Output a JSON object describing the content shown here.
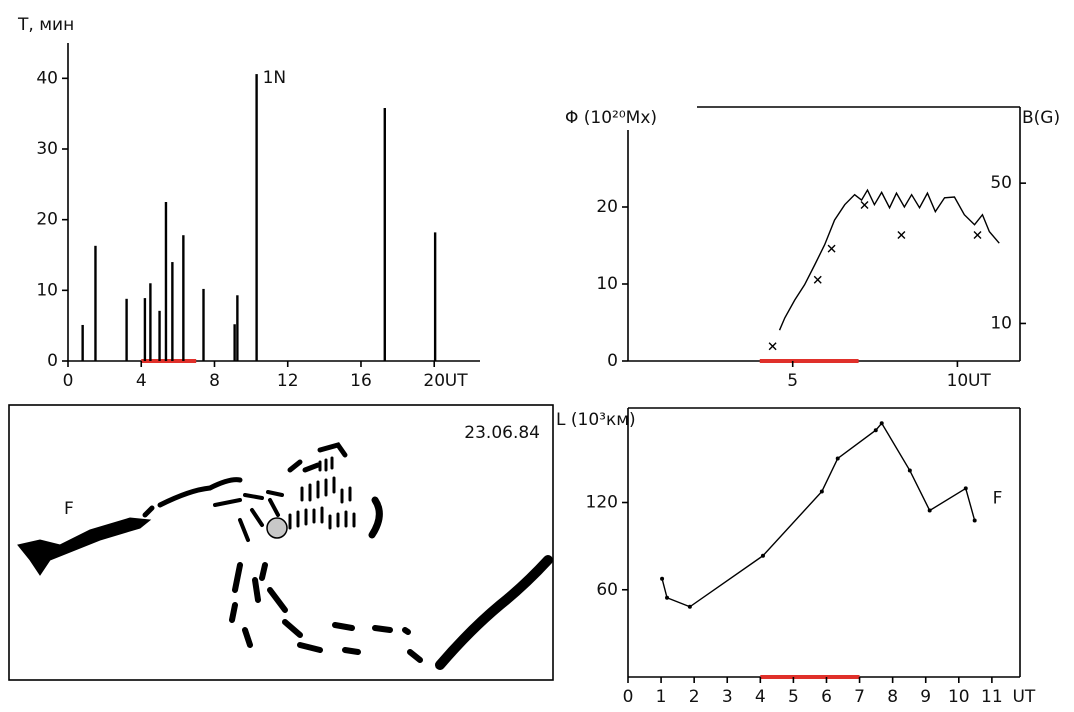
{
  "chart_data": [
    {
      "type": "bar",
      "ylabel": "T, мин",
      "xlabel": "UT",
      "annotation": "1N",
      "x": [
        0.8,
        1.5,
        3.2,
        4.2,
        4.5,
        5.0,
        5.35,
        5.7,
        6.3,
        7.4,
        9.1,
        9.25,
        10.3,
        17.3,
        20.05
      ],
      "values": [
        5.1,
        16.3,
        8.8,
        8.9,
        11.0,
        7.1,
        22.5,
        14.0,
        17.8,
        10.2,
        5.2,
        9.3,
        40.6,
        35.8,
        18.2
      ],
      "color": "#000000",
      "xlim": [
        0,
        22.5
      ],
      "xticks": [
        0,
        4,
        8,
        12,
        16,
        20
      ],
      "ylim": [
        0,
        45
      ],
      "yticks": [
        0,
        10,
        20,
        30,
        40
      ],
      "highlight": [
        4,
        7
      ],
      "highlight_color": "#e0302a"
    },
    {
      "type": "line",
      "ylabel": "Φ (10²⁰Mx)",
      "y2label": "B(G)",
      "xlabel": "UT",
      "series": [
        {
          "color": "#000000",
          "marker": "none",
          "x": [
            4.6,
            4.76,
            5.06,
            5.36,
            5.67,
            5.97,
            6.27,
            6.58,
            6.88,
            7.09,
            7.27,
            7.48,
            7.7,
            7.94,
            8.15,
            8.39,
            8.61,
            8.85,
            9.09,
            9.33,
            9.61,
            9.91,
            10.21,
            10.52,
            10.76,
            10.97,
            11.27
          ],
          "values": [
            4.0,
            5.6,
            7.9,
            9.9,
            12.5,
            15.1,
            18.3,
            20.3,
            21.6,
            20.9,
            22.2,
            20.3,
            21.9,
            19.9,
            21.8,
            20.0,
            21.6,
            19.9,
            21.8,
            19.4,
            21.2,
            21.3,
            19.0,
            17.7,
            19.0,
            16.8,
            15.3
          ]
        },
        {
          "color": "#000000",
          "marker": "x",
          "axis": "y2",
          "x": [
            4.39,
            5.76,
            6.18,
            7.18,
            8.3,
            10.61
          ],
          "values": [
            7.7,
            16.5,
            23.6,
            38.9,
            27.6,
            27.6
          ]
        }
      ],
      "xlim": [
        0,
        11.9
      ],
      "xticks": [
        5,
        10
      ],
      "ylim": [
        0,
        30
      ],
      "yticks": [
        0,
        10,
        20
      ],
      "y2lim": [
        6.5,
        92
      ],
      "y2ticks": [
        10,
        50
      ],
      "y2log": true,
      "highlight": [
        4,
        7
      ],
      "highlight_color": "#e0302a"
    },
    {
      "type": "line",
      "ylabel": "L (10³км)",
      "xlabel": "UT",
      "annotation": "F",
      "series": [
        {
          "color": "#000000",
          "marker": "dot",
          "x": [
            1.03,
            1.18,
            1.87,
            4.08,
            5.86,
            6.34,
            7.49,
            7.67,
            8.52,
            9.12,
            10.21,
            10.48
          ],
          "values": [
            67.6,
            54.5,
            48.3,
            83.4,
            127.6,
            150.3,
            169.7,
            174.5,
            142,
            114.5,
            129.7,
            107.6
          ]
        }
      ],
      "xlim": [
        0,
        11.85
      ],
      "xticks": [
        0,
        1,
        2,
        3,
        4,
        5,
        6,
        7,
        8,
        9,
        10,
        11
      ],
      "ylim": [
        0,
        185
      ],
      "yticks": [
        60,
        120
      ],
      "highlight": [
        4,
        7
      ],
      "highlight_color": "#e0302a"
    }
  ],
  "sketch": {
    "date": "23.06.84",
    "label": "F"
  }
}
